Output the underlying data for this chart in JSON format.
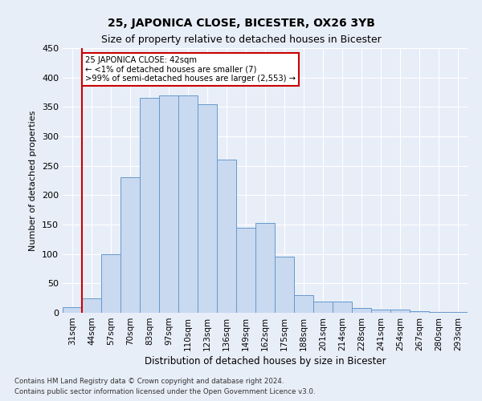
{
  "title": "25, JAPONICA CLOSE, BICESTER, OX26 3YB",
  "subtitle": "Size of property relative to detached houses in Bicester",
  "xlabel": "Distribution of detached houses by size in Bicester",
  "ylabel": "Number of detached properties",
  "bar_labels": [
    "31sqm",
    "44sqm",
    "57sqm",
    "70sqm",
    "83sqm",
    "97sqm",
    "110sqm",
    "123sqm",
    "136sqm",
    "149sqm",
    "162sqm",
    "175sqm",
    "188sqm",
    "201sqm",
    "214sqm",
    "228sqm",
    "241sqm",
    "254sqm",
    "267sqm",
    "280sqm",
    "293sqm"
  ],
  "bar_values": [
    10,
    25,
    100,
    230,
    365,
    370,
    370,
    355,
    260,
    145,
    153,
    96,
    30,
    19,
    19,
    8,
    5,
    5,
    3,
    2,
    2
  ],
  "bar_color": "#c9d9f0",
  "bar_edge_color": "#6699cc",
  "ylim": [
    0,
    450
  ],
  "yticks": [
    0,
    50,
    100,
    150,
    200,
    250,
    300,
    350,
    400,
    450
  ],
  "redline_bin_index": 1,
  "annotation_text": "25 JAPONICA CLOSE: 42sqm\n← <1% of detached houses are smaller (7)\n>99% of semi-detached houses are larger (2,553) →",
  "annotation_box_color": "#ffffff",
  "annotation_border_color": "#cc0000",
  "footer_line1": "Contains HM Land Registry data © Crown copyright and database right 2024.",
  "footer_line2": "Contains public sector information licensed under the Open Government Licence v3.0.",
  "background_color": "#e8eef8",
  "grid_color": "#ffffff",
  "title_fontsize": 10,
  "subtitle_fontsize": 9,
  "bar_edge_linewidth": 0.7
}
